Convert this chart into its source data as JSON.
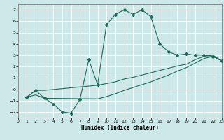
{
  "xlabel": "Humidex (Indice chaleur)",
  "bg_color": "#cce8e8",
  "grid_color": "#ffffff",
  "line_color": "#1e6b5a",
  "xlim": [
    0,
    23
  ],
  "ylim": [
    -2.5,
    7.5
  ],
  "xticks": [
    0,
    1,
    2,
    3,
    4,
    5,
    6,
    7,
    8,
    9,
    10,
    11,
    12,
    13,
    14,
    15,
    16,
    17,
    18,
    19,
    20,
    21,
    22,
    23
  ],
  "yticks": [
    -2,
    -1,
    0,
    1,
    2,
    3,
    4,
    5,
    6,
    7
  ],
  "curve_main_x": [
    1,
    2,
    3,
    4,
    5,
    6,
    7,
    8,
    9,
    10,
    11,
    12,
    13,
    14,
    15,
    16,
    17,
    18,
    19,
    20,
    21,
    22,
    23
  ],
  "curve_main_y": [
    -0.7,
    -0.1,
    -0.8,
    -1.3,
    -2.0,
    -2.1,
    -0.9,
    2.6,
    0.4,
    5.7,
    6.6,
    7.0,
    6.6,
    7.0,
    6.4,
    4.0,
    3.3,
    3.0,
    3.1,
    3.0,
    3.0,
    2.9,
    2.5
  ],
  "curve_upper_x": [
    1,
    2,
    3,
    9,
    10,
    11,
    12,
    13,
    14,
    15,
    16,
    17,
    18,
    19,
    20,
    21,
    22,
    23
  ],
  "curve_upper_y": [
    -0.7,
    -0.1,
    -0.1,
    0.35,
    0.5,
    0.65,
    0.9,
    1.05,
    1.25,
    1.45,
    1.65,
    1.85,
    2.05,
    2.2,
    2.6,
    2.9,
    3.0,
    2.5
  ],
  "curve_lower_x": [
    1,
    2,
    3,
    9,
    10,
    11,
    12,
    13,
    14,
    15,
    16,
    17,
    18,
    19,
    20,
    21,
    22,
    23
  ],
  "curve_lower_y": [
    -0.7,
    -0.5,
    -0.8,
    -0.85,
    -0.65,
    -0.4,
    -0.1,
    0.15,
    0.4,
    0.65,
    0.95,
    1.25,
    1.6,
    1.9,
    2.3,
    2.7,
    2.9,
    2.5
  ]
}
